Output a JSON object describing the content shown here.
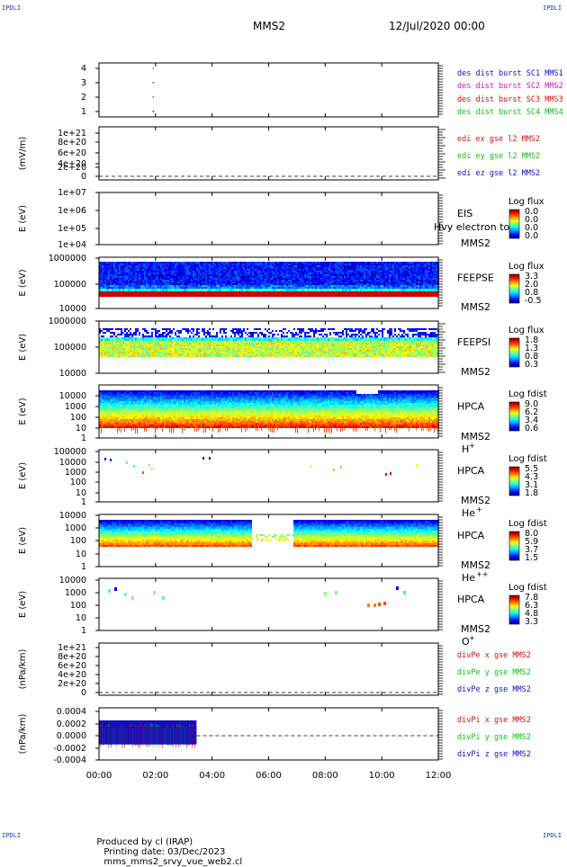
{
  "corners": {
    "tl": "IPDLI",
    "tr": "IPDLI",
    "bl": "IPDLI",
    "br": "IPDLI"
  },
  "header": {
    "mission": "MMS2",
    "date": "12/Jul/2020 00:00"
  },
  "footer": {
    "producer": "Produced by cl (IRAP)",
    "printing": "Printing date: 03/Dec/2023",
    "file": "mms_mms2_srvy_vue_web2.cl"
  },
  "chart_data": [
    {
      "id": "p1",
      "type": "scatter",
      "yticks": [
        "4",
        "3",
        "2",
        "1"
      ],
      "ylim": [
        0.5,
        4.5
      ],
      "series": [
        {
          "name": "des dist burst SC1 MMS1",
          "color": "#1010c0",
          "points": [
            [
              1.95,
              1
            ]
          ]
        },
        {
          "name": "des dist burst SC2 MMS2",
          "color": "#d010d0",
          "points": [
            [
              1.95,
              2
            ]
          ]
        },
        {
          "name": "des dist burst SC3 MMS3",
          "color": "#d01010",
          "points": [
            [
              1.95,
              3
            ]
          ]
        },
        {
          "name": "des dist burst SC4 MMS4",
          "color": "#10c010",
          "points": [
            [
              1.95,
              4
            ]
          ]
        }
      ]
    },
    {
      "id": "p2",
      "type": "line",
      "ylabel": "(mV/m)",
      "yticks": [
        "1e+21",
        "8e+20",
        "6e+20",
        "4e+20",
        "2e+20",
        "0"
      ],
      "series": [
        {
          "name": "edi ex gse l2 MMS2",
          "color": "#d01010"
        },
        {
          "name": "edi ey gse l2 MMS2",
          "color": "#10c010"
        },
        {
          "name": "edi ez gse l2 MMS2",
          "color": "#1010c0"
        }
      ]
    },
    {
      "id": "p3",
      "type": "heatmap",
      "ylabel": "E (eV)",
      "yticks": [
        "1e+07",
        "1e+06",
        "1e+05",
        "1e+04"
      ],
      "label": "EIS",
      "sub": "MMS2",
      "overlay": "Hvy electron to",
      "cbar_title": "Log flux",
      "cbar_ticks": [
        "0.0",
        "0.0",
        "0.0",
        "0.0"
      ]
    },
    {
      "id": "p4",
      "type": "heatmap",
      "ylabel": "E (eV)",
      "yticks": [
        "1000000",
        "100000",
        "10000"
      ],
      "label": "FEEPSE",
      "sub": "MMS2",
      "cbar_title": "Log flux",
      "cbar_ticks": [
        "3.3",
        "2.0",
        "0.8",
        "-0.5"
      ]
    },
    {
      "id": "p5",
      "type": "heatmap",
      "ylabel": "E (eV)",
      "yticks": [
        "1000000",
        "100000",
        "10000"
      ],
      "label": "FEEPSI",
      "sub": "MMS2",
      "cbar_title": "Log flux",
      "cbar_ticks": [
        "1.8",
        "1.3",
        "0.8",
        "0.3"
      ]
    },
    {
      "id": "p6",
      "type": "heatmap",
      "ylabel": "E (eV)",
      "yticks": [
        "10000",
        "1000",
        "100",
        "10",
        "1"
      ],
      "label": "HPCA",
      "sub": "MMS2",
      "species": "H",
      "charge": "+",
      "cbar_title": "Log fdist",
      "cbar_ticks": [
        "9.0",
        "6.2",
        "3.4",
        "0.6"
      ]
    },
    {
      "id": "p7",
      "type": "heatmap",
      "ylabel": "E (eV)",
      "yticks": [
        "100000",
        "10000",
        "1000",
        "100",
        "10",
        "1"
      ],
      "label": "HPCA",
      "sub": "MMS2",
      "species": "He",
      "charge": "+",
      "cbar_title": "Log fdist",
      "cbar_ticks": [
        "5.5",
        "4.3",
        "3.1",
        "1.8"
      ]
    },
    {
      "id": "p8",
      "type": "heatmap",
      "ylabel": "E (eV)",
      "yticks": [
        "10000",
        "1000",
        "100",
        "10",
        "1"
      ],
      "label": "HPCA",
      "sub": "MMS2",
      "species": "He",
      "charge": "++",
      "cbar_title": "Log fdist",
      "cbar_ticks": [
        "8.0",
        "5.9",
        "3.7",
        "1.5"
      ]
    },
    {
      "id": "p9",
      "type": "heatmap",
      "ylabel": "E (eV)",
      "yticks": [
        "10000",
        "1000",
        "100",
        "10",
        "1"
      ],
      "label": "HPCA",
      "sub": "MMS2",
      "species": "O",
      "charge": "+",
      "cbar_title": "Log fdist",
      "cbar_ticks": [
        "7.8",
        "6.3",
        "4.8",
        "3.3"
      ]
    },
    {
      "id": "p10",
      "type": "line",
      "ylabel": "(nPa/km)",
      "yticks": [
        "1e+21",
        "8e+20",
        "6e+20",
        "4e+20",
        "2e+20",
        "0"
      ],
      "series": [
        {
          "name": "divPe x gse MMS2",
          "color": "#d01010"
        },
        {
          "name": "divPe y gse MMS2",
          "color": "#10c010"
        },
        {
          "name": "divPe z gse MMS2",
          "color": "#1010c0"
        }
      ]
    },
    {
      "id": "p11",
      "type": "line",
      "ylabel": "(nPa/km)",
      "yticks": [
        "0.0004",
        "0.0002",
        "0.0000",
        "-0.0002",
        "-0.0004"
      ],
      "ylim": [
        -0.0004,
        0.0004
      ],
      "data_extent_hours": [
        0,
        3.45
      ],
      "series": [
        {
          "name": "divPi x gse MMS2",
          "color": "#d01010"
        },
        {
          "name": "divPi y gse MMS2",
          "color": "#10c010"
        },
        {
          "name": "divPi z gse MMS2",
          "color": "#1010c0"
        }
      ]
    }
  ],
  "x_axis": {
    "ticks": [
      "00:00",
      "02:00",
      "04:00",
      "06:00",
      "08:00",
      "10:00",
      "12:00"
    ],
    "xlim": [
      0,
      12
    ],
    "unit": "hours"
  }
}
